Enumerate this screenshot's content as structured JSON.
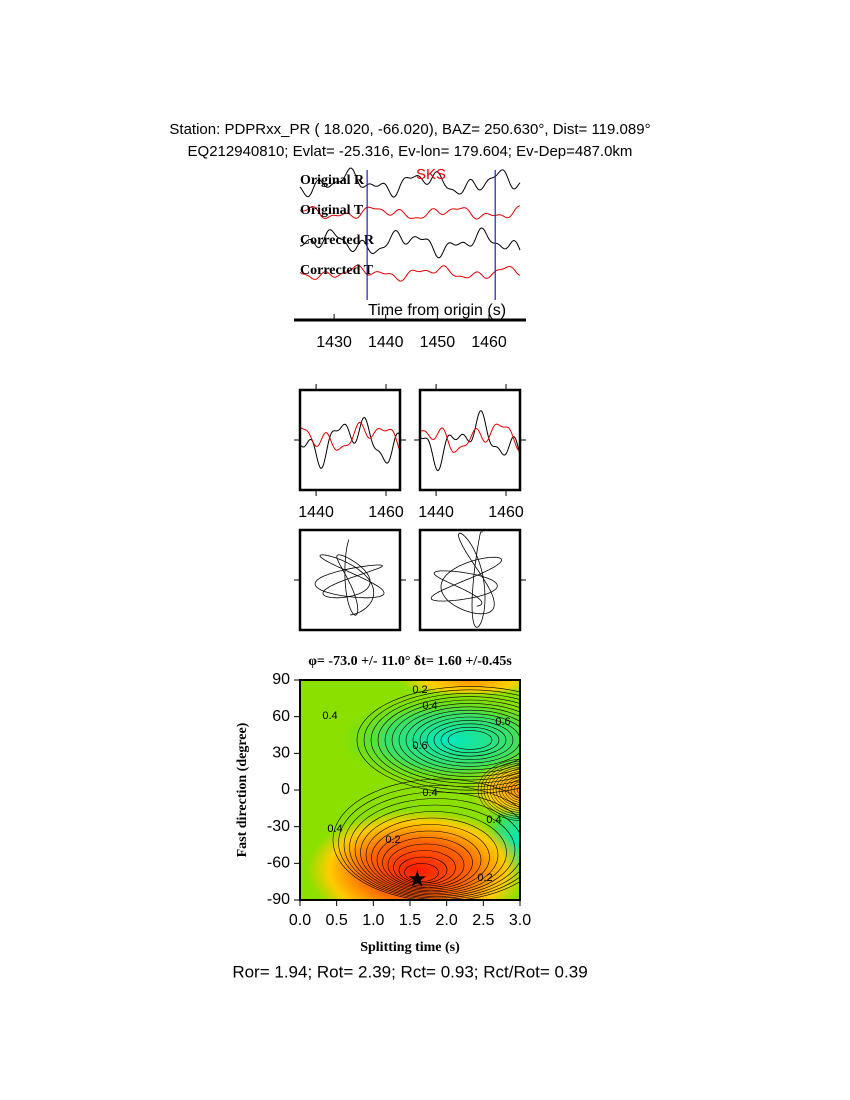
{
  "header": {
    "line1": "Station: PDPRxx_PR (  18.020,  -66.020), BAZ=  250.630°, Dist=  119.089°",
    "line2": "EQ212940810; Evlat= -25.316, Ev-lon= 179.604; Ev-Dep=487.0km"
  },
  "chart_data": [
    {
      "type": "waveform",
      "trace_labels": [
        "Original R",
        "Original T",
        "Corrected R",
        "Corrected T"
      ],
      "phase_label": "SKS",
      "xlabel": "Time from origin (s)",
      "xlim": [
        1423.4,
        1466
      ],
      "xticks": [
        1430,
        1440,
        1450,
        1460
      ],
      "window": [
        1436.4,
        1461.2
      ]
    },
    {
      "type": "waveform_pair",
      "xlim": [
        1435.4,
        1464
      ],
      "xticks": [
        1440,
        1460
      ]
    },
    {
      "type": "particle_motion"
    },
    {
      "type": "contour",
      "title": "φ= -73.0 +/- 11.0° δt= 1.60 +/-0.45s",
      "xlabel": "Splitting time (s)",
      "ylabel": "Fast direction (degree)",
      "xlim": [
        0,
        3
      ],
      "xticks": [
        {
          "value": 0,
          "label": "0.0"
        },
        {
          "value": 0.5,
          "label": "0.5"
        },
        {
          "value": 1,
          "label": "1.0"
        },
        {
          "value": 1.5,
          "label": "1.5"
        },
        {
          "value": 2,
          "label": "2.0"
        },
        {
          "value": 2.5,
          "label": "2.5"
        },
        {
          "value": 3,
          "label": "3.0"
        }
      ],
      "ylim": [
        -90,
        90
      ],
      "yticks": [
        -90,
        -60,
        -30,
        0,
        30,
        60,
        90
      ],
      "best": {
        "x": 1.6,
        "y": -73
      },
      "contour_labels": [
        "0.2",
        "0.4",
        "0.4",
        "0.6",
        "0.6",
        "0.4",
        "0.4",
        "0.2",
        "0.4",
        "0.2"
      ]
    }
  ],
  "footer": "Ror= 1.94; Rot= 2.39; Rct= 0.93; Rct/Rot= 0.39"
}
